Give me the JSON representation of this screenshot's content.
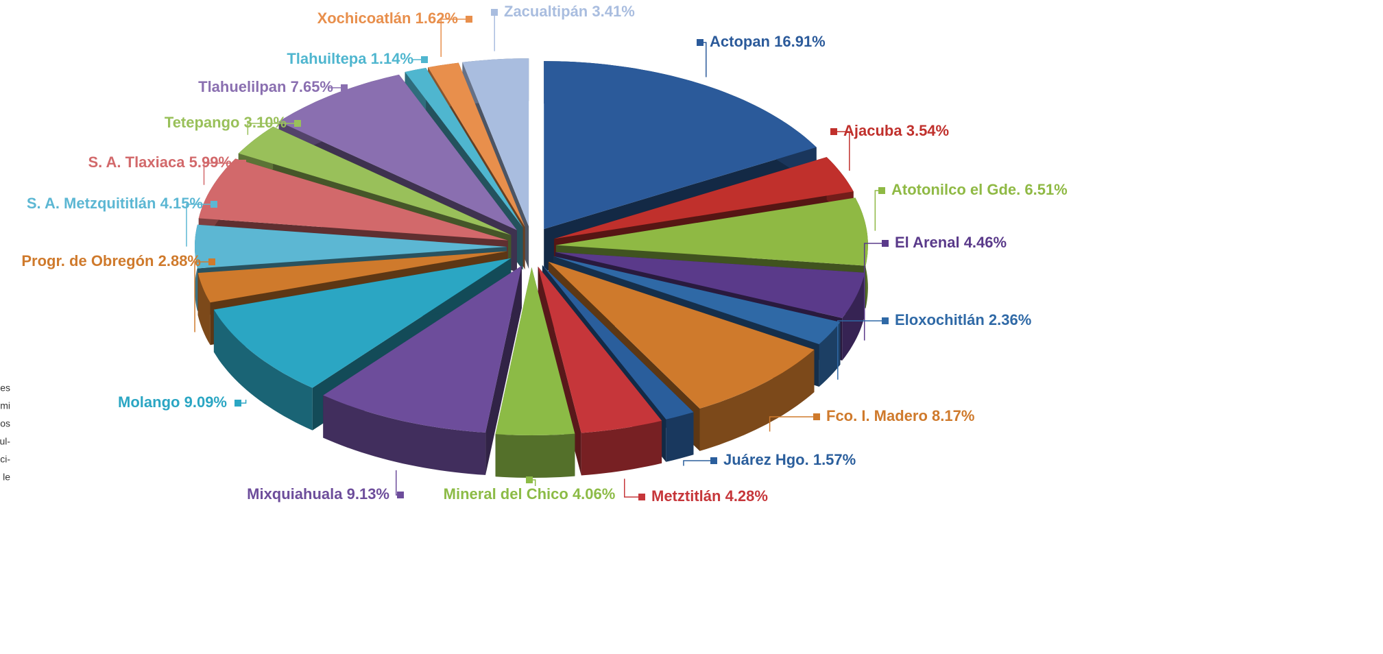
{
  "chart_data": {
    "type": "pie",
    "categories": [
      "Actopan",
      "Ajacuba",
      "Atotonilco el Gde.",
      "El Arenal",
      "Eloxochitlán",
      "Fco. I. Madero",
      "Juárez Hgo.",
      "Metztitlán",
      "Mineral del Chico",
      "Mixquiahuala",
      "Molango",
      "Progr. de Obregón",
      "S. A. Metzquititlán",
      "S. A. Tlaxiaca",
      "Tetepango",
      "Tlahuelilpan",
      "Tlahuiltepa",
      "Xochicoatlán",
      "Zacualtipán"
    ],
    "values": [
      16.91,
      3.54,
      6.51,
      4.46,
      2.36,
      8.17,
      1.57,
      4.28,
      4.06,
      9.13,
      9.09,
      2.88,
      4.15,
      5.99,
      3.1,
      7.65,
      1.14,
      1.62,
      3.41
    ],
    "value_labels": [
      "16.91%",
      "3.54%",
      "6.51%",
      "4.46%",
      "2.36%",
      "8.17%",
      "1.57%",
      "4.28%",
      "4.06%",
      "9.13%",
      "9.09%",
      "2.88%",
      "4.15%",
      "5.99%",
      "3.10%",
      "7.65%",
      "1.14%",
      "1.62%",
      "3.41%"
    ],
    "colors": [
      "#2b5a9a",
      "#c0302c",
      "#8fb944",
      "#5a3a8a",
      "#2f69a6",
      "#cf7a2c",
      "#2a5e9c",
      "#c6363a",
      "#8cbb46",
      "#6d4d9b",
      "#2ba6c3",
      "#cf7a2c",
      "#5cb7d3",
      "#d2696b",
      "#99c05a",
      "#8a6fb0",
      "#4fb6cf",
      "#e88f4c",
      "#a9bddf"
    ]
  },
  "side_text": [
    "es",
    "mi",
    "os",
    "ul-",
    "ci-",
    "le"
  ]
}
